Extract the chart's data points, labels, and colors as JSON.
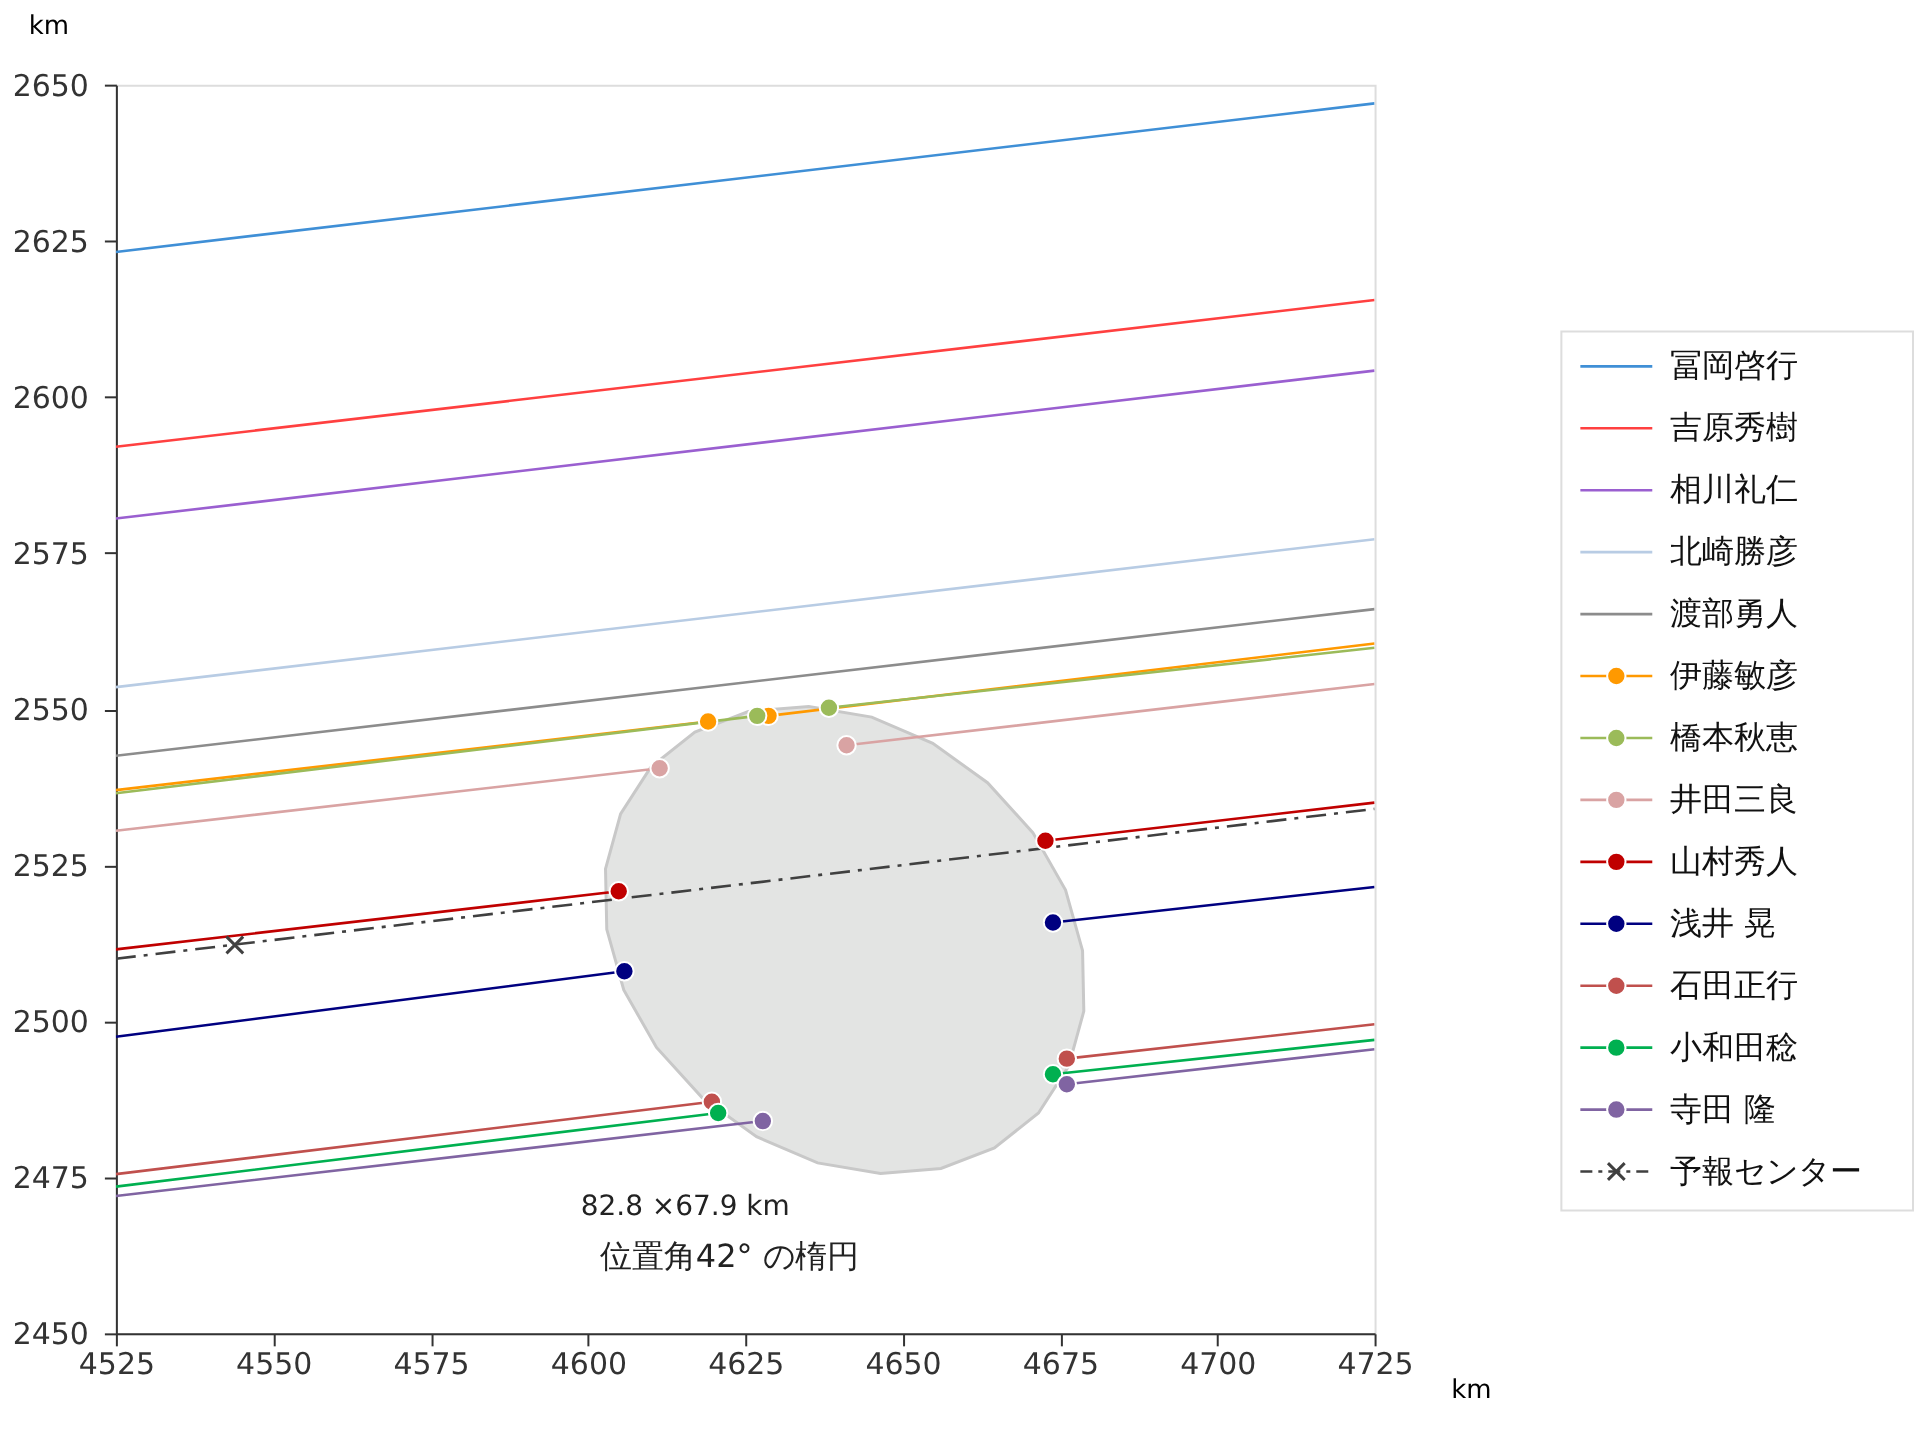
{
  "chart_data": {
    "type": "line",
    "xlabel": "km",
    "ylabel": "km",
    "xlim": [
      4525,
      4725
    ],
    "xticks": [
      4525,
      4550,
      4575,
      4600,
      4625,
      4650,
      4675,
      4700,
      4725
    ],
    "ylim": [
      2450,
      2650
    ],
    "yticks": [
      2450,
      2475,
      2500,
      2525,
      2550,
      2575,
      2600,
      2625,
      2650
    ],
    "legend": "right",
    "annotations": [
      "82.8 ×67.9 km",
      "位置角42° の楕円"
    ],
    "series": [
      {
        "type": "area",
        "color": "#e3e4e3",
        "x": [
          4610.0,
          4605.2,
          4602.8,
          4603.0,
          4605.7,
          4610.9,
          4618.1,
          4626.8,
          4636.5,
          4646.5,
          4656.1,
          4664.6,
          4671.6,
          4676.4,
          4678.8,
          4678.6,
          4675.9,
          4670.7,
          4663.5,
          4654.8,
          4645.1,
          4635.1,
          4625.5,
          4617.0,
          4610.0
        ],
        "values": [
          2540.7,
          2533.2,
          2524.4,
          2514.7,
          2505.0,
          2495.8,
          2487.8,
          2481.5,
          2477.3,
          2475.6,
          2476.4,
          2479.7,
          2485.3,
          2492.8,
          2501.6,
          2511.3,
          2521.0,
          2530.2,
          2538.2,
          2544.5,
          2548.7,
          2550.4,
          2549.6,
          2546.3,
          2540.7
        ]
      },
      {
        "name": "冨岡啓行",
        "color": "#3f8fd6",
        "x": [
          4525,
          4725
        ],
        "values": [
          2623.2,
          2647.0
        ]
      },
      {
        "name": "吉原秀樹",
        "color": "#ff4040",
        "x": [
          4525,
          4725
        ],
        "values": [
          2592.0,
          2615.5
        ]
      },
      {
        "name": "相川礼仁",
        "color": "#9a5fd0",
        "x": [
          4525,
          4725
        ],
        "values": [
          2580.5,
          2604.2
        ]
      },
      {
        "name": "北崎勝彦",
        "color": "#b8cce4",
        "x": [
          4525,
          4725
        ],
        "values": [
          2553.5,
          2577.2
        ]
      },
      {
        "name": "渡部勇人",
        "color": "#8c8c8c",
        "x": [
          4525,
          4725
        ],
        "values": [
          2542.5,
          2566.0
        ]
      },
      {
        "name": "伊藤敏彦",
        "color": "#ff9900",
        "x": [
          4525,
          4619.1,
          4624,
          4628.7,
          4725
        ],
        "values": [
          2537.0,
          2548.0,
          null,
          2548.9,
          2560.5
        ]
      },
      {
        "name": "橋本秋恵",
        "color": "#9bbb59",
        "x": [
          4525,
          4626.9,
          4632,
          4638.3,
          4725
        ],
        "values": [
          2536.5,
          2548.9,
          null,
          2550.2,
          2559.8
        ]
      },
      {
        "name": "井田三良",
        "color": "#d9a3a3",
        "x": [
          4525,
          4611.4,
          4626,
          4641.1,
          4725
        ],
        "values": [
          2530.5,
          2540.5,
          null,
          2544.2,
          2554.0
        ]
      },
      {
        "name": "山村秀人",
        "color": "#c00000",
        "x": [
          4525,
          4604.9,
          4638,
          4672.7,
          4725
        ],
        "values": [
          2511.5,
          2520.8,
          null,
          2528.9,
          2535.0
        ]
      },
      {
        "name": "浅井 晃",
        "color": "#000080",
        "x": [
          4525,
          4605.8,
          4640,
          4673.9,
          4725
        ],
        "values": [
          2497.5,
          2508.0,
          null,
          2515.8,
          2521.5
        ]
      },
      {
        "name": "石田正行",
        "color": "#c0504d",
        "x": [
          4525,
          4619.7,
          4648,
          4676.1,
          4725
        ],
        "values": [
          2475.5,
          2487.1,
          null,
          2494.0,
          2499.5
        ]
      },
      {
        "name": "小和田稔",
        "color": "#00b050",
        "x": [
          4525,
          4620.7,
          4647,
          4673.9,
          4725
        ],
        "values": [
          2473.5,
          2485.3,
          null,
          2491.5,
          2497.0
        ]
      },
      {
        "name": "寺田 隆",
        "color": "#8064a2",
        "x": [
          4525,
          4627.8,
          4652,
          4676.1,
          4725
        ],
        "values": [
          2472.0,
          2484.0,
          null,
          2489.9,
          2495.5
        ]
      },
      {
        "name": "予報センター",
        "color": "#404040",
        "line_style": "dashed",
        "x": [
          4525,
          4725
        ],
        "values": [
          2510.0,
          2534.0
        ]
      },
      {
        "type": "scatter",
        "color": "#ff9900",
        "marker": "circle",
        "x": [
          4619.1,
          4628.7
        ],
        "values": [
          2548.0,
          2548.9
        ]
      },
      {
        "type": "scatter",
        "color": "#9bbb59",
        "marker": "circle",
        "x": [
          4626.9,
          4638.3
        ],
        "values": [
          2548.9,
          2550.2
        ]
      },
      {
        "type": "scatter",
        "color": "#d9a3a3",
        "marker": "circle",
        "x": [
          4611.4,
          4641.1
        ],
        "values": [
          2540.5,
          2544.2
        ]
      },
      {
        "type": "scatter",
        "color": "#c00000",
        "marker": "circle",
        "x": [
          4604.9,
          4672.7
        ],
        "values": [
          2520.8,
          2528.9
        ]
      },
      {
        "type": "scatter",
        "color": "#000080",
        "marker": "circle",
        "x": [
          4605.8,
          4673.9
        ],
        "values": [
          2508.0,
          2515.8
        ]
      },
      {
        "type": "scatter",
        "color": "#c0504d",
        "marker": "circle",
        "x": [
          4619.7,
          4676.1
        ],
        "values": [
          2487.1,
          2494.0
        ]
      },
      {
        "type": "scatter",
        "color": "#00b050",
        "marker": "circle",
        "x": [
          4620.7,
          4673.9
        ],
        "values": [
          2485.3,
          2491.5
        ]
      },
      {
        "type": "scatter",
        "color": "#8064a2",
        "marker": "circle",
        "x": [
          4627.8,
          4676.1
        ],
        "values": [
          2484.0,
          2489.9
        ]
      },
      {
        "type": "scatter",
        "color": "#404040",
        "marker": "cross",
        "x": [
          4543.9
        ],
        "values": [
          2512.2
        ]
      }
    ]
  }
}
